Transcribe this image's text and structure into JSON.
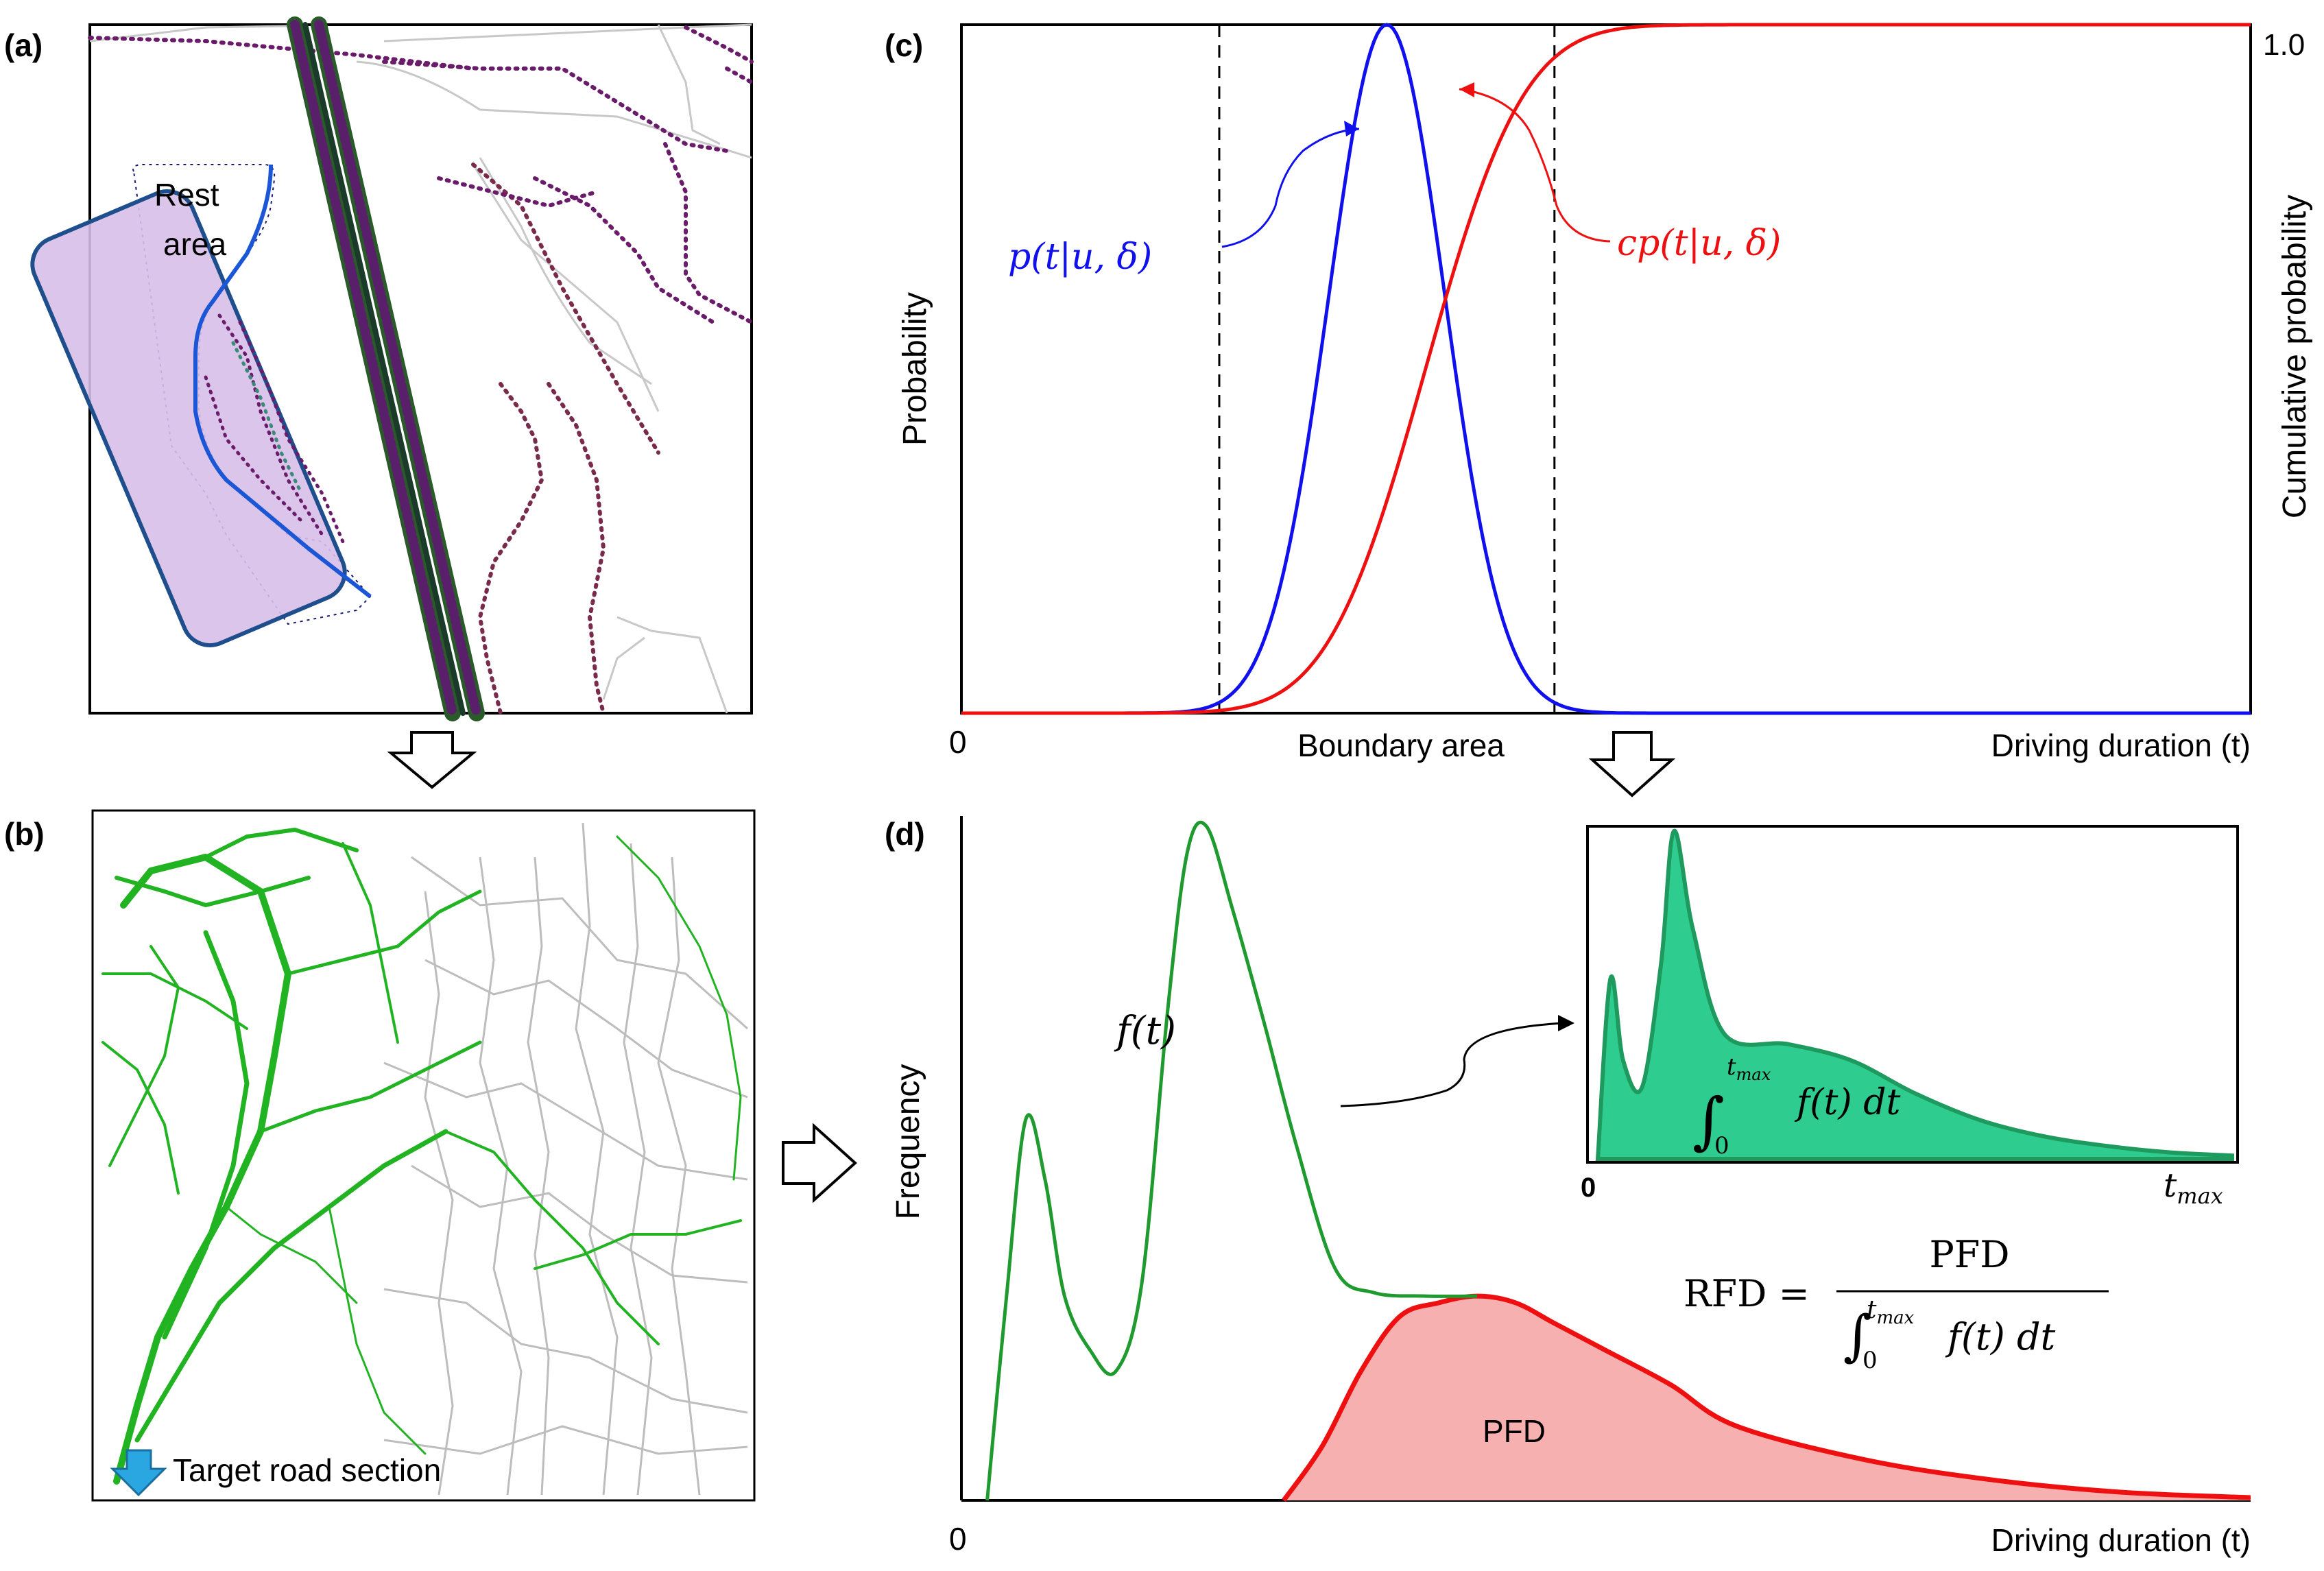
{
  "panels": {
    "a": {
      "label": "(a)",
      "rest_area_label_line1": "Rest",
      "rest_area_label_line2": "area"
    },
    "b": {
      "label": "(b)",
      "target_label": "Target road section"
    },
    "c": {
      "label": "(c)",
      "y_left_label": "Probability",
      "y_right_label": "Cumulative probability",
      "x_label": "Driving duration (t)",
      "x_origin": "0",
      "y_right_top": "1.0",
      "boundary_label": "Boundary area",
      "pdf_label": "p(t|u, δ)",
      "cdf_label": "cp(t|u, δ)"
    },
    "d": {
      "label": "(d)",
      "y_label": "Frequency",
      "x_label": "Driving duration (t)",
      "x_origin": "0",
      "f_label": "f(t)",
      "pfd_label": "PFD",
      "inset_origin": "0",
      "inset_tmax": "t",
      "inset_tmax_sub": "max",
      "inset_integral_f": "f(t) dt",
      "rfd_lhs": "RFD =",
      "rfd_numerator": "PFD",
      "rfd_denominator_f": "f(t) dt",
      "integral_lower": "0",
      "integral_upper": "t",
      "integral_upper_sub": "max"
    }
  },
  "chart_data": [
    {
      "type": "line",
      "panel": "c",
      "series": [
        {
          "name": "p(t|u, δ)",
          "kind": "gaussian_pdf",
          "mean": 0.33,
          "sd": 0.045,
          "color": "#1010ee"
        },
        {
          "name": "cp(t|u, δ)",
          "kind": "cumulative",
          "mean": 0.36,
          "sd": 0.06,
          "color": "#ee1010"
        }
      ],
      "boundary_area": [
        0.2,
        0.46
      ],
      "xlim": [
        0,
        1
      ],
      "ylim": [
        0,
        1
      ],
      "xlabel": "Driving duration (t)",
      "ylabel_left": "Probability",
      "ylabel_right": "Cumulative probability"
    },
    {
      "type": "area",
      "panel": "d",
      "series": [
        {
          "name": "f(t)",
          "color": "#1f9a2e",
          "points": [
            [
              0.02,
              0.0
            ],
            [
              0.035,
              0.3
            ],
            [
              0.05,
              0.56
            ],
            [
              0.065,
              0.47
            ],
            [
              0.08,
              0.3
            ],
            [
              0.1,
              0.22
            ],
            [
              0.12,
              0.19
            ],
            [
              0.14,
              0.32
            ],
            [
              0.16,
              0.72
            ],
            [
              0.175,
              0.95
            ],
            [
              0.19,
              0.99
            ],
            [
              0.21,
              0.87
            ],
            [
              0.235,
              0.7
            ],
            [
              0.26,
              0.52
            ],
            [
              0.29,
              0.34
            ],
            [
              0.32,
              0.305
            ],
            [
              0.36,
              0.3
            ],
            [
              0.4,
              0.3
            ]
          ]
        },
        {
          "name": "PFD",
          "color": "#ee1010",
          "fill": "#f7b0b0",
          "points": [
            [
              0.25,
              0.0
            ],
            [
              0.28,
              0.08
            ],
            [
              0.31,
              0.19
            ],
            [
              0.34,
              0.27
            ],
            [
              0.37,
              0.29
            ],
            [
              0.4,
              0.3
            ],
            [
              0.43,
              0.29
            ],
            [
              0.46,
              0.26
            ],
            [
              0.5,
              0.22
            ],
            [
              0.55,
              0.17
            ],
            [
              0.6,
              0.11
            ],
            [
              0.7,
              0.06
            ],
            [
              0.8,
              0.03
            ],
            [
              0.9,
              0.012
            ],
            [
              1.0,
              0.004
            ]
          ]
        }
      ],
      "inset": {
        "name": "f(t) normalized",
        "fill": "#2ecc8e",
        "points": [
          [
            0.0,
            0.0
          ],
          [
            0.02,
            0.55
          ],
          [
            0.04,
            0.3
          ],
          [
            0.07,
            0.22
          ],
          [
            0.1,
            0.6
          ],
          [
            0.12,
            1.0
          ],
          [
            0.15,
            0.7
          ],
          [
            0.2,
            0.38
          ],
          [
            0.3,
            0.35
          ],
          [
            0.4,
            0.3
          ],
          [
            0.5,
            0.2
          ],
          [
            0.6,
            0.12
          ],
          [
            0.7,
            0.07
          ],
          [
            0.8,
            0.04
          ],
          [
            0.9,
            0.02
          ],
          [
            1.0,
            0.01
          ]
        ]
      },
      "xlabel": "Driving duration (t)",
      "ylabel": "Frequency"
    }
  ]
}
